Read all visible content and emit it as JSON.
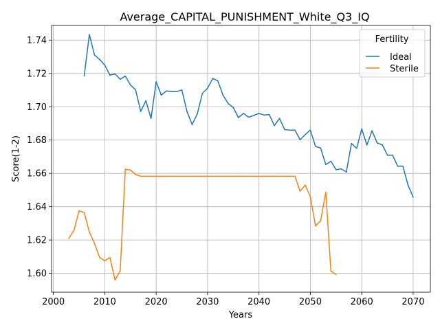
{
  "chart_data": {
    "type": "line",
    "title": "Average_CAPITAL_PUNISHMENT_White_Q3_IQ",
    "xlabel": "Years",
    "ylabel": "Score(1-2)",
    "xlim": [
      1999.65,
      2073.35
    ],
    "ylim": [
      1.5887,
      1.7488
    ],
    "xticks": [
      2000,
      2010,
      2020,
      2030,
      2040,
      2050,
      2060,
      2070
    ],
    "xtick_labels": [
      "2000",
      "2010",
      "2020",
      "2030",
      "2040",
      "2050",
      "2060",
      "2070"
    ],
    "yticks": [
      1.6,
      1.62,
      1.64,
      1.66,
      1.68,
      1.7,
      1.72,
      1.74
    ],
    "ytick_labels": [
      "1.60",
      "1.62",
      "1.64",
      "1.66",
      "1.68",
      "1.70",
      "1.72",
      "1.74"
    ],
    "grid": true,
    "legend": {
      "title": "Fertility",
      "placement": "top-right"
    },
    "series": [
      {
        "name": "Ideal",
        "color": "#1f77b4",
        "x": [
          2006,
          2007,
          2008,
          2009,
          2010,
          2011,
          2012,
          2013,
          2014,
          2015,
          2016,
          2017,
          2018,
          2019,
          2020,
          2021,
          2022,
          2023,
          2024,
          2025,
          2026,
          2027,
          2028,
          2029,
          2030,
          2031,
          2032,
          2033,
          2034,
          2035,
          2036,
          2037,
          2038,
          2039,
          2040,
          2041,
          2042,
          2043,
          2044,
          2045,
          2046,
          2047,
          2048,
          2049,
          2050,
          2051,
          2052,
          2053,
          2054,
          2055,
          2056,
          2057,
          2058,
          2059,
          2060,
          2061,
          2062,
          2063,
          2064,
          2065,
          2066,
          2067,
          2068,
          2069,
          2070
        ],
        "values": [
          1.7185,
          1.7433,
          1.7311,
          1.7284,
          1.725,
          1.719,
          1.7197,
          1.7165,
          1.7184,
          1.7131,
          1.7101,
          1.6972,
          1.7036,
          1.693,
          1.715,
          1.707,
          1.7095,
          1.7091,
          1.7091,
          1.7101,
          1.6971,
          1.6893,
          1.6957,
          1.7081,
          1.7111,
          1.717,
          1.7155,
          1.707,
          1.702,
          1.6995,
          1.6935,
          1.696,
          1.6937,
          1.6948,
          1.696,
          1.695,
          1.6953,
          1.6887,
          1.693,
          1.6863,
          1.686,
          1.686,
          1.6802,
          1.6833,
          1.686,
          1.6762,
          1.6752,
          1.6653,
          1.6673,
          1.6622,
          1.6627,
          1.6608,
          1.678,
          1.675,
          1.6867,
          1.677,
          1.6856,
          1.6783,
          1.6771,
          1.6709,
          1.6709,
          1.6643,
          1.6643,
          1.653,
          1.6457
        ]
      },
      {
        "name": "Sterile",
        "color": "#ff7f0e",
        "x": [
          2003,
          2004,
          2005,
          2006,
          2007,
          2008,
          2009,
          2010,
          2011,
          2012,
          2013,
          2014,
          2015,
          2016,
          2017,
          2018,
          2019,
          2020,
          2021,
          2022,
          2023,
          2024,
          2025,
          2026,
          2027,
          2028,
          2029,
          2030,
          2031,
          2032,
          2033,
          2034,
          2035,
          2036,
          2037,
          2038,
          2039,
          2040,
          2041,
          2042,
          2043,
          2044,
          2045,
          2046,
          2047,
          2048,
          2049,
          2050,
          2051,
          2052,
          2053,
          2054,
          2055
        ],
        "values": [
          1.621,
          1.6258,
          1.6375,
          1.6365,
          1.6248,
          1.618,
          1.6095,
          1.6075,
          1.6095,
          1.596,
          1.6015,
          1.6625,
          1.662,
          1.6593,
          1.6583,
          1.6583,
          1.6583,
          1.6583,
          1.6583,
          1.6583,
          1.6583,
          1.6583,
          1.6583,
          1.6583,
          1.6583,
          1.6583,
          1.6583,
          1.6583,
          1.6583,
          1.6583,
          1.6583,
          1.6583,
          1.6583,
          1.6583,
          1.6583,
          1.6583,
          1.6583,
          1.6583,
          1.6583,
          1.6583,
          1.6583,
          1.6583,
          1.6583,
          1.6583,
          1.6583,
          1.6493,
          1.653,
          1.646,
          1.6285,
          1.6315,
          1.6488,
          1.6015,
          1.5992
        ]
      }
    ]
  }
}
